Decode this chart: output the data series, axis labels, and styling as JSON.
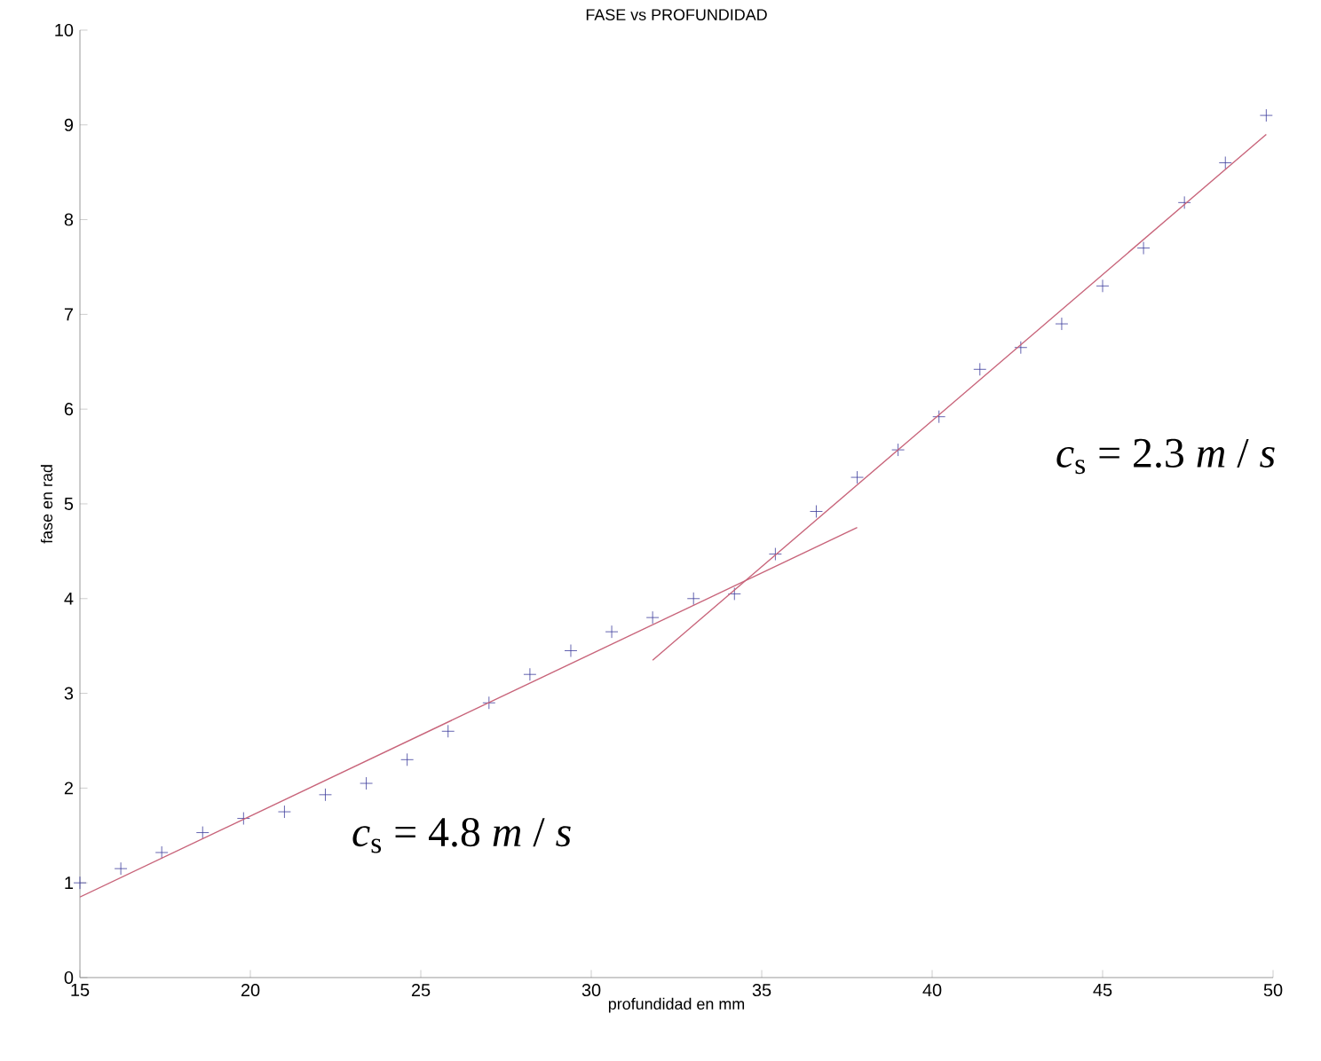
{
  "chart_data": {
    "type": "scatter",
    "title": "FASE vs PROFUNDIDAD",
    "xlabel": "profundidad en mm",
    "ylabel": "fase en rad",
    "xlim": [
      15,
      50
    ],
    "ylim": [
      0,
      10
    ],
    "xticks": [
      15,
      20,
      25,
      30,
      35,
      40,
      45,
      50
    ],
    "yticks": [
      0,
      1,
      2,
      3,
      4,
      5,
      6,
      7,
      8,
      9,
      10
    ],
    "grid": false,
    "series": [
      {
        "marker": "cross",
        "color": "#3c3c9c",
        "x": [
          15.0,
          16.2,
          17.4,
          18.6,
          19.8,
          21.0,
          22.2,
          23.4,
          24.6,
          25.8,
          27.0,
          28.2,
          29.4,
          30.6,
          31.8,
          33.0,
          34.2,
          35.4,
          36.6,
          37.8,
          39.0,
          40.2,
          41.4,
          42.6,
          43.8,
          45.0,
          46.2,
          47.4,
          48.6,
          49.8
        ],
        "values": [
          1.0,
          1.15,
          1.32,
          1.53,
          1.68,
          1.75,
          1.93,
          2.05,
          2.3,
          2.6,
          2.9,
          3.2,
          3.45,
          3.65,
          3.8,
          4.0,
          4.05,
          4.47,
          4.92,
          5.28,
          5.57,
          5.92,
          6.42,
          6.65,
          6.9,
          7.3,
          7.7,
          8.18,
          8.6,
          9.1
        ]
      },
      {
        "type": "line",
        "color": "#c8647a",
        "x": [
          15,
          37.8
        ],
        "values": [
          0.85,
          4.75
        ]
      },
      {
        "type": "line",
        "color": "#c8647a",
        "x": [
          31.8,
          49.8
        ],
        "values": [
          3.35,
          8.9
        ]
      }
    ],
    "annotations": [
      "*c*$_{s}$ = 4.8 *m* / *s*",
      "*c*$_{s}$ = 2.3 *m* / *s*"
    ]
  }
}
